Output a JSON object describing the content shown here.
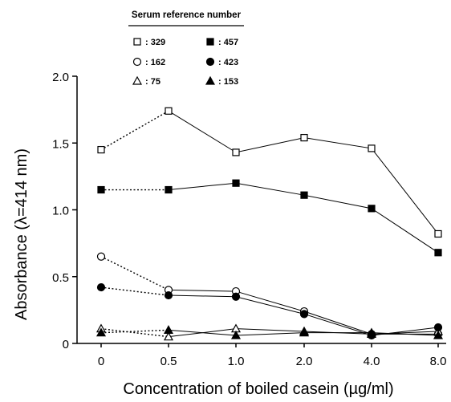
{
  "chart_data": {
    "type": "line",
    "title": "",
    "xlabel": "Concentration of boiled casein (µg/ml)",
    "ylabel": "Absorbance (λ=414 nm)",
    "categories": [
      "0",
      "0.5",
      "1.0",
      "2.0",
      "4.0",
      "8.0"
    ],
    "ylim": [
      0,
      2.0
    ],
    "yticks": [
      "0",
      "0.5",
      "1.0",
      "1.5",
      "2.0"
    ],
    "legend": {
      "title": "Serum reference number",
      "placement": "top"
    },
    "grid": false,
    "note": "first segment (0 to 0.5) drawn dotted, remaining segments solid",
    "series": [
      {
        "name": "329",
        "marker": "open-square",
        "values": [
          1.45,
          1.74,
          1.43,
          1.54,
          1.46,
          0.82
        ]
      },
      {
        "name": "162",
        "marker": "open-circle",
        "values": [
          0.65,
          0.4,
          0.39,
          0.24,
          0.07,
          0.07
        ]
      },
      {
        "name": "75",
        "marker": "open-triangle",
        "values": [
          0.11,
          0.05,
          0.11,
          0.09,
          0.07,
          0.09
        ]
      },
      {
        "name": "457",
        "marker": "filled-square",
        "values": [
          1.15,
          1.15,
          1.2,
          1.11,
          1.01,
          0.68
        ]
      },
      {
        "name": "423",
        "marker": "filled-circle",
        "values": [
          0.42,
          0.36,
          0.35,
          0.22,
          0.06,
          0.12
        ]
      },
      {
        "name": "153",
        "marker": "filled-triangle",
        "values": [
          0.08,
          0.1,
          0.06,
          0.08,
          0.08,
          0.06
        ]
      }
    ]
  }
}
